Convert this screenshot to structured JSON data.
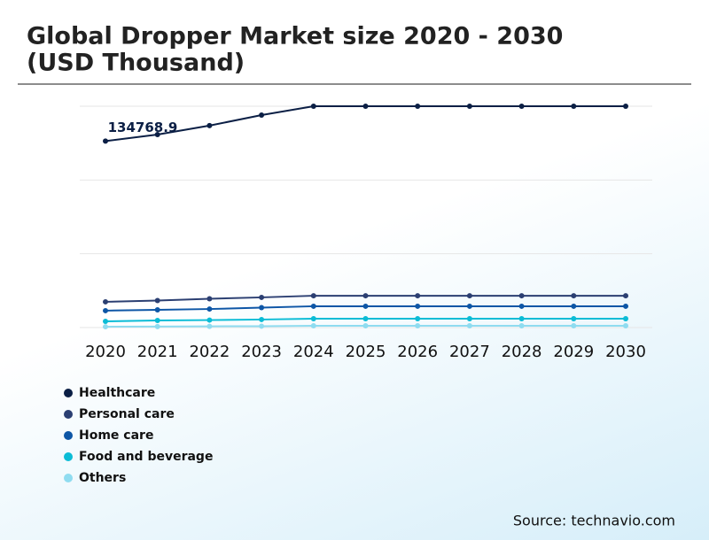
{
  "chart_data": {
    "type": "line",
    "title": "Global Dropper Market size 2020 - 2030",
    "subtitle": "(USD Thousand)",
    "source": "Source: technavio.com",
    "categories": [
      "2020",
      "2021",
      "2022",
      "2023",
      "2024",
      "2025",
      "2026",
      "2027",
      "2028",
      "2029",
      "2030"
    ],
    "series": [
      {
        "name": "Healthcare",
        "color": "#0b1f45",
        "values": [
          134768.9,
          139500,
          146000,
          153600,
          160000,
          160000,
          160000,
          160000,
          160000,
          160000,
          160000
        ]
      },
      {
        "name": "Personal care",
        "color": "#2b3f72",
        "values": [
          18600,
          19500,
          20800,
          21800,
          23000,
          23000,
          23000,
          23000,
          23000,
          23000,
          23000
        ]
      },
      {
        "name": "Home care",
        "color": "#0d56a6",
        "values": [
          12200,
          12800,
          13400,
          14400,
          15400,
          15400,
          15400,
          15400,
          15400,
          15400,
          15400
        ]
      },
      {
        "name": "Food and beverage",
        "color": "#0bbcd6",
        "values": [
          4500,
          5100,
          5400,
          5800,
          6400,
          6400,
          6400,
          6400,
          6400,
          6400,
          6400
        ]
      },
      {
        "name": "Others",
        "color": "#8fdcf0",
        "values": [
          600,
          700,
          900,
          1000,
          1300,
          1300,
          1300,
          1300,
          1300,
          1300,
          1300
        ]
      }
    ],
    "ylim": [
      0,
      160000
    ],
    "grid": true,
    "label_first_point": true,
    "legend": "bottom-left"
  }
}
